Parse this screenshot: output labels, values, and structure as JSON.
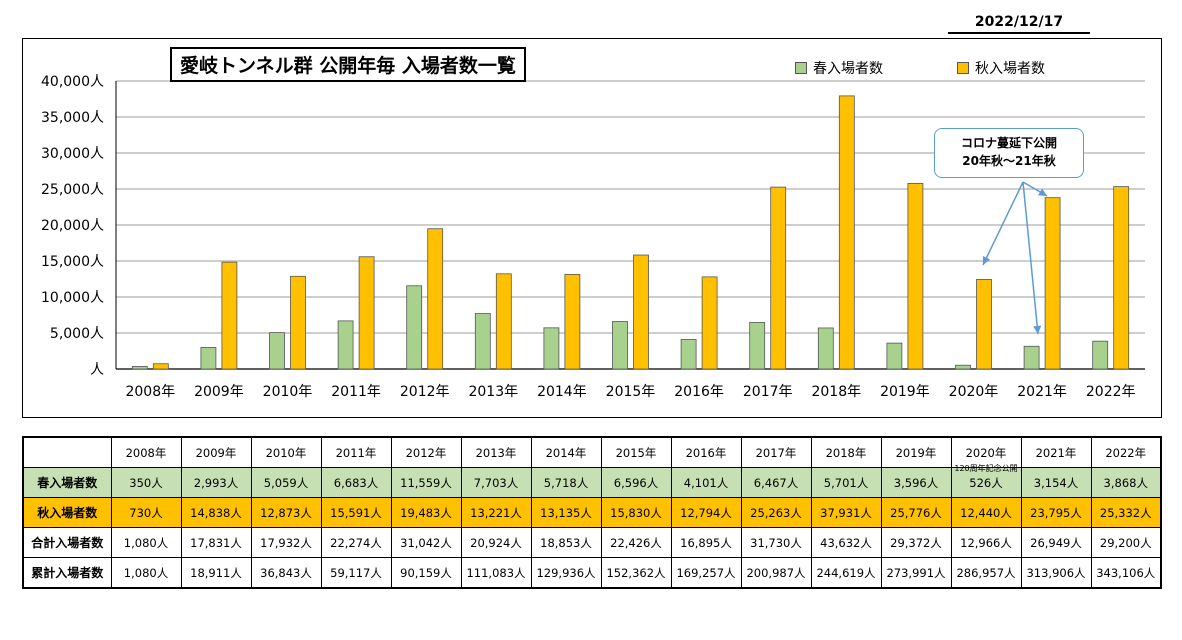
{
  "date": "2022/12/17",
  "chart_data": {
    "type": "bar",
    "title": "愛岐トンネル群 公開年毎 入場者数一覧",
    "categories": [
      "2008年",
      "2009年",
      "2010年",
      "2011年",
      "2012年",
      "2013年",
      "2014年",
      "2015年",
      "2016年",
      "2017年",
      "2018年",
      "2019年",
      "2020年",
      "2021年",
      "2022年"
    ],
    "series": [
      {
        "name": "春入場者数",
        "color": "#a9d18e",
        "values": [
          350,
          2993,
          5059,
          6683,
          11559,
          7703,
          5718,
          6596,
          4101,
          6467,
          5701,
          3596,
          526,
          3154,
          3868
        ]
      },
      {
        "name": "秋入場者数",
        "color": "#ffc000",
        "values": [
          730,
          14838,
          12873,
          15591,
          19483,
          13221,
          13135,
          15830,
          12794,
          25263,
          37931,
          25776,
          12440,
          23795,
          25332
        ]
      }
    ],
    "ylim": [
      0,
      40000
    ],
    "yticks": [
      0,
      5000,
      10000,
      15000,
      20000,
      25000,
      30000,
      35000,
      40000
    ],
    "ytick_labels": [
      "人",
      "5,000人",
      "10,000人",
      "15,000人",
      "20,000人",
      "25,000人",
      "30,000人",
      "35,000人",
      "40,000人"
    ],
    "grid": true,
    "legend_position": "top-right",
    "annotation": {
      "line1": "コロナ蔓延下公開",
      "line2": "20年秋～21年秋"
    }
  },
  "table": {
    "headers": [
      "2008年",
      "2009年",
      "2010年",
      "2011年",
      "2012年",
      "2013年",
      "2014年",
      "2015年",
      "2016年",
      "2017年",
      "2018年",
      "2019年",
      "2020年",
      "2021年",
      "2022年"
    ],
    "rows": [
      {
        "label": "春入場者数",
        "cells": [
          "350人",
          "2,993人",
          "5,059人",
          "6,683人",
          "11,559人",
          "7,703人",
          "5,718人",
          "6,596人",
          "4,101人",
          "6,467人",
          "5,701人",
          "3,596人",
          "526人",
          "3,154人",
          "3,868人"
        ]
      },
      {
        "label": "秋入場者数",
        "cells": [
          "730人",
          "14,838人",
          "12,873人",
          "15,591人",
          "19,483人",
          "13,221人",
          "13,135人",
          "15,830人",
          "12,794人",
          "25,263人",
          "37,931人",
          "25,776人",
          "12,440人",
          "23,795人",
          "25,332人"
        ]
      },
      {
        "label": "合計入場者数",
        "cells": [
          "1,080人",
          "17,831人",
          "17,932人",
          "22,274人",
          "31,042人",
          "20,924人",
          "18,853人",
          "22,426人",
          "16,895人",
          "31,730人",
          "43,632人",
          "29,372人",
          "12,966人",
          "26,949人",
          "29,200人"
        ]
      },
      {
        "label": "累計入場者数",
        "cells": [
          "1,080人",
          "18,911人",
          "36,843人",
          "59,117人",
          "90,159人",
          "111,083人",
          "129,936人",
          "152,362人",
          "169,257人",
          "200,987人",
          "244,619人",
          "273,991人",
          "286,957人",
          "313,906人",
          "343,106人"
        ]
      }
    ],
    "note_2020_spring": "120周年記念公開"
  }
}
